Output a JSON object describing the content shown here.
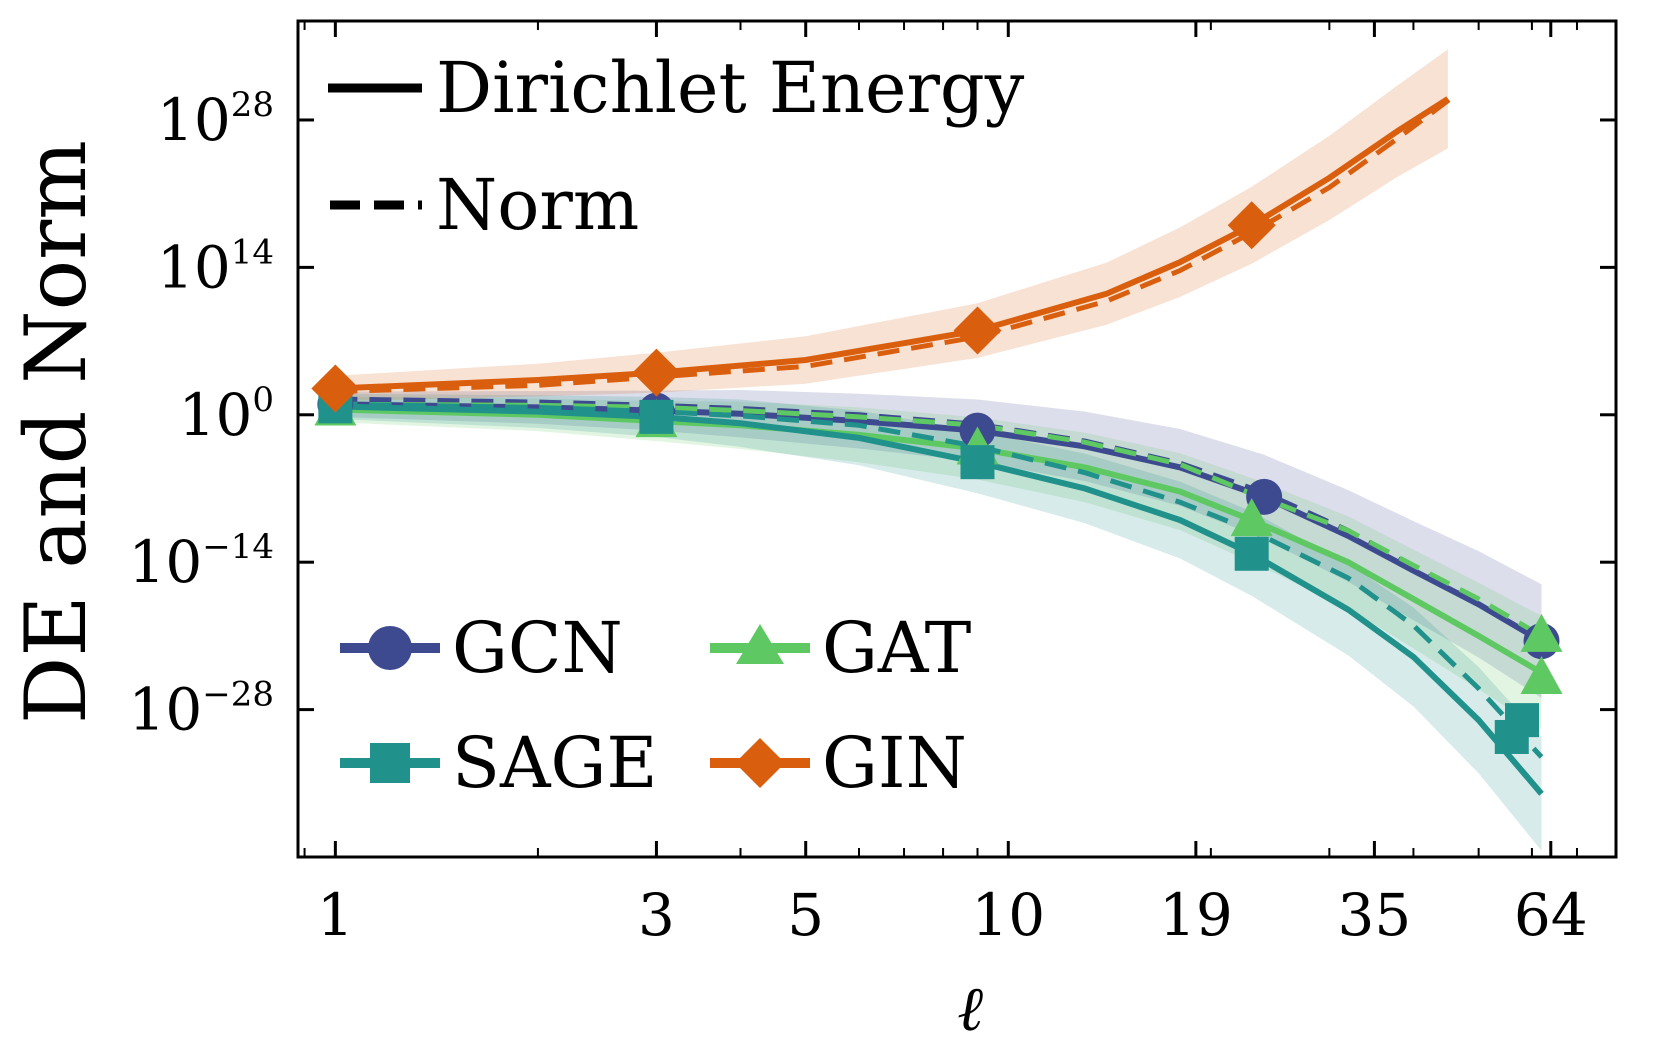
{
  "chart_data": {
    "type": "line",
    "title": "",
    "xlabel": "ℓ",
    "ylabel": "DE and Norm",
    "xscale": "log",
    "yscale": "log",
    "xlim": [
      0.88,
      80
    ],
    "ylim_log10": [
      -42,
      37.4
    ],
    "x_ticks": [
      1,
      3,
      5,
      10,
      19,
      35,
      64
    ],
    "x_tick_labels": [
      "1",
      "3",
      "5",
      "10",
      "19",
      "35",
      "64"
    ],
    "y_ticks": [
      {
        "base": "10",
        "exp": "28",
        "value_log10": 28
      },
      {
        "base": "10",
        "exp": "14",
        "value_log10": 14
      },
      {
        "base": "10",
        "exp": "0",
        "value_log10": 0
      },
      {
        "base": "10",
        "exp": "−14",
        "value_log10": -14
      },
      {
        "base": "10",
        "exp": "−28",
        "value_log10": -28
      }
    ],
    "style_legend": [
      {
        "label": "Dirichlet Energy",
        "line": "solid"
      },
      {
        "label": "Norm",
        "line": "dashed"
      }
    ],
    "series": [
      {
        "name": "GCN",
        "color": "#3d4a8f",
        "marker": "circle",
        "markers_x": [
          1,
          3,
          9,
          24,
          62
        ],
        "markers_log10": [
          1,
          0.4,
          -1.5,
          -7.8,
          -21.5
        ],
        "de_x": [
          1,
          2,
          3,
          4,
          6,
          9,
          13,
          18,
          24,
          32,
          40,
          50,
          62
        ],
        "de_log10": [
          1,
          0.7,
          0.4,
          0.1,
          -0.6,
          -1.5,
          -3.0,
          -5.0,
          -7.8,
          -11.5,
          -14.8,
          -18.0,
          -21.5
        ],
        "norm_x": [
          1,
          2,
          3,
          4,
          6,
          9,
          13,
          18,
          24,
          32,
          40,
          50,
          62
        ],
        "norm_log10": [
          1.5,
          1.2,
          0.9,
          0.6,
          0.0,
          -0.9,
          -2.5,
          -4.6,
          -7.4,
          -11.0,
          -14.5,
          -18.0,
          -21.5
        ]
      },
      {
        "name": "GAT",
        "color": "#5ec962",
        "marker": "triangle",
        "markers_x": [
          1,
          3,
          9,
          23,
          62,
          62
        ],
        "markers_log10": [
          0.5,
          -0.6,
          -3.2,
          -10.0,
          -21.0,
          -25.0
        ],
        "de_x": [
          1,
          2,
          3,
          4,
          6,
          9,
          13,
          18,
          23,
          32,
          40,
          50,
          62
        ],
        "de_log10": [
          0.5,
          0.0,
          -0.6,
          -1.0,
          -1.9,
          -3.2,
          -5.0,
          -7.3,
          -10.0,
          -14.0,
          -17.5,
          -21.0,
          -24.5
        ],
        "norm_x": [
          1,
          2,
          3,
          4,
          6,
          9,
          13,
          18,
          23,
          32,
          40,
          50,
          62
        ],
        "norm_log10": [
          1.0,
          0.9,
          0.7,
          0.4,
          -0.2,
          -1.0,
          -2.6,
          -4.7,
          -7.5,
          -11.0,
          -14.3,
          -17.5,
          -21.0
        ]
      },
      {
        "name": "SAGE",
        "color": "#21918c",
        "marker": "square",
        "markers_x": [
          1,
          3,
          9,
          23,
          58,
          56
        ],
        "markers_log10": [
          0.8,
          -0.2,
          -4.5,
          -13.2,
          -29.0,
          -30.6
        ],
        "de_x": [
          1,
          2,
          3,
          4,
          6,
          9,
          13,
          18,
          23,
          32,
          40,
          50,
          62
        ],
        "de_log10": [
          0.8,
          0.3,
          -0.2,
          -0.8,
          -2.2,
          -4.5,
          -7.0,
          -10.0,
          -13.2,
          -18.5,
          -23.0,
          -29.0,
          -36.0
        ],
        "norm_x": [
          1,
          2,
          3,
          4,
          6,
          9,
          13,
          18,
          23,
          32,
          40,
          50,
          62
        ],
        "norm_log10": [
          1.0,
          0.7,
          0.3,
          -0.1,
          -1.0,
          -3.0,
          -5.5,
          -8.3,
          -11.0,
          -15.5,
          -20.0,
          -26.0,
          -32.5
        ]
      },
      {
        "name": "GIN",
        "color": "#d95f0e",
        "marker": "diamond",
        "markers_x": [
          1,
          3,
          9,
          23
        ],
        "markers_log10": [
          2.5,
          4.0,
          8.0,
          18.0
        ],
        "de_x": [
          1,
          2,
          3,
          5,
          9,
          14,
          18,
          23,
          30,
          38,
          45
        ],
        "de_log10": [
          2.5,
          3.3,
          4.0,
          5.2,
          8.0,
          11.5,
          14.5,
          18.0,
          22.5,
          27.0,
          30.0
        ],
        "norm_x": [
          1,
          2,
          3,
          5,
          9,
          14,
          18,
          23,
          30,
          38,
          46
        ],
        "norm_log10": [
          2.2,
          2.8,
          3.6,
          4.6,
          7.4,
          10.8,
          13.7,
          17.3,
          21.6,
          26.3,
          30.3
        ]
      }
    ]
  }
}
